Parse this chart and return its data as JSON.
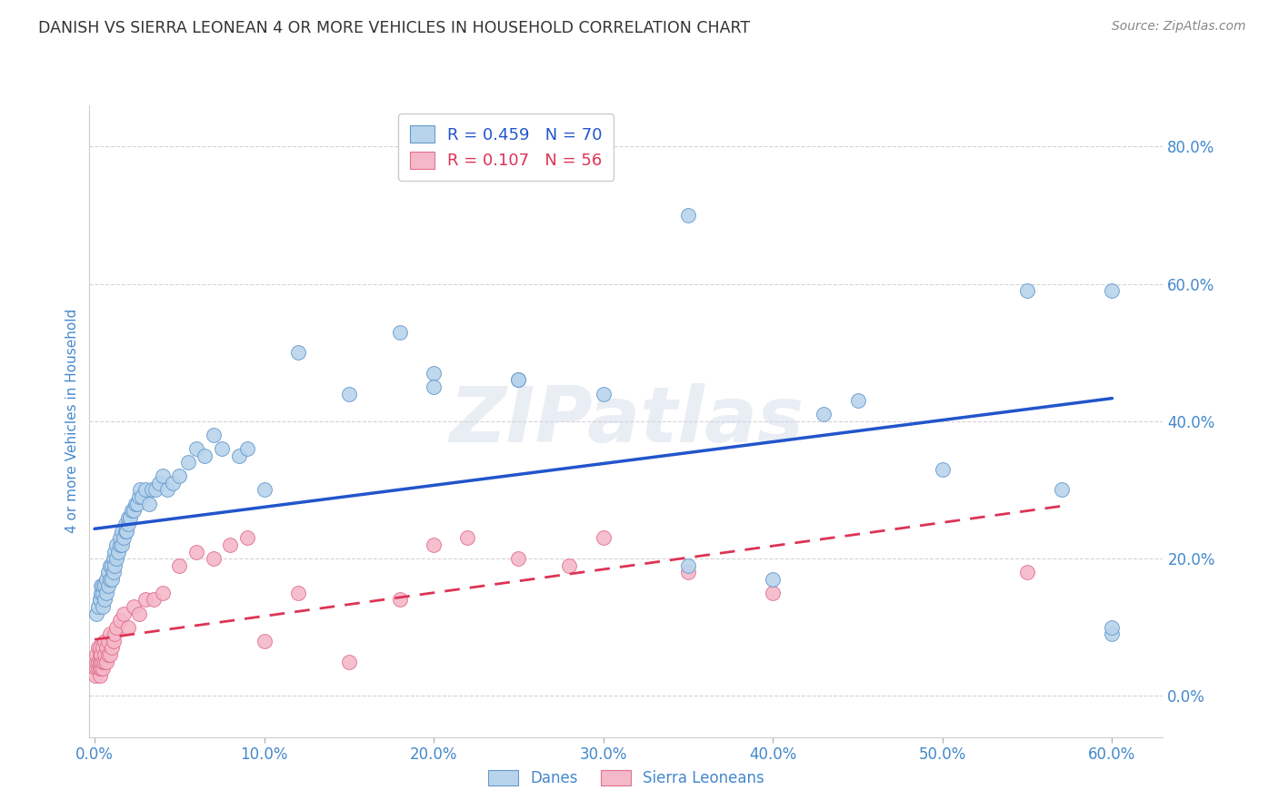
{
  "title": "DANISH VS SIERRA LEONEAN 4 OR MORE VEHICLES IN HOUSEHOLD CORRELATION CHART",
  "source": "Source: ZipAtlas.com",
  "ylabel": "4 or more Vehicles in Household",
  "watermark": "ZIPatlas",
  "legend_dane_R": "0.459",
  "legend_dane_N": "70",
  "legend_sierra_R": "0.107",
  "legend_sierra_N": "56",
  "dane_color": "#b8d4ec",
  "dane_edge_color": "#6699cc",
  "sierra_color": "#f5b8c8",
  "sierra_edge_color": "#e07090",
  "trend_dane_color": "#2255cc",
  "trend_sierra_color": "#dd3355",
  "xlim": [
    -0.003,
    0.63
  ],
  "ylim": [
    -0.06,
    0.86
  ],
  "xtick_vals": [
    0.0,
    0.1,
    0.2,
    0.3,
    0.4,
    0.5,
    0.6
  ],
  "ytick_vals": [
    0.0,
    0.2,
    0.4,
    0.6,
    0.8
  ],
  "background_color": "#ffffff",
  "grid_color": "#d0d0d0",
  "title_color": "#333333",
  "axis_label_color": "#4488cc",
  "tick_color": "#4488cc",
  "danes_x": [
    0.001,
    0.002,
    0.003,
    0.003,
    0.004,
    0.004,
    0.005,
    0.005,
    0.005,
    0.006,
    0.006,
    0.007,
    0.007,
    0.008,
    0.008,
    0.009,
    0.009,
    0.01,
    0.01,
    0.011,
    0.011,
    0.012,
    0.012,
    0.013,
    0.013,
    0.014,
    0.015,
    0.015,
    0.016,
    0.016,
    0.017,
    0.018,
    0.018,
    0.019,
    0.02,
    0.02,
    0.021,
    0.022,
    0.023,
    0.024,
    0.025,
    0.026,
    0.027,
    0.028,
    0.03,
    0.032,
    0.034,
    0.036,
    0.038,
    0.04,
    0.043,
    0.046,
    0.05,
    0.055,
    0.06,
    0.065,
    0.07,
    0.075,
    0.085,
    0.09,
    0.1,
    0.12,
    0.15,
    0.18,
    0.2,
    0.25,
    0.3,
    0.35,
    0.4,
    0.6
  ],
  "danes_y": [
    0.12,
    0.13,
    0.14,
    0.14,
    0.15,
    0.16,
    0.13,
    0.15,
    0.16,
    0.14,
    0.16,
    0.15,
    0.17,
    0.16,
    0.18,
    0.17,
    0.19,
    0.17,
    0.19,
    0.18,
    0.2,
    0.19,
    0.21,
    0.2,
    0.22,
    0.21,
    0.22,
    0.23,
    0.22,
    0.24,
    0.23,
    0.24,
    0.25,
    0.24,
    0.25,
    0.26,
    0.26,
    0.27,
    0.27,
    0.28,
    0.28,
    0.29,
    0.3,
    0.29,
    0.3,
    0.28,
    0.3,
    0.3,
    0.31,
    0.32,
    0.3,
    0.31,
    0.32,
    0.34,
    0.36,
    0.35,
    0.38,
    0.36,
    0.35,
    0.36,
    0.3,
    0.5,
    0.44,
    0.53,
    0.47,
    0.46,
    0.44,
    0.19,
    0.17,
    0.59
  ],
  "danes_x2": [
    0.2,
    0.25,
    0.35,
    0.43,
    0.45,
    0.5,
    0.55,
    0.57,
    0.6,
    0.6
  ],
  "danes_y2": [
    0.45,
    0.46,
    0.7,
    0.41,
    0.43,
    0.33,
    0.59,
    0.3,
    0.09,
    0.1
  ],
  "sierra_x": [
    0.0005,
    0.001,
    0.001,
    0.001,
    0.002,
    0.002,
    0.002,
    0.003,
    0.003,
    0.003,
    0.003,
    0.003,
    0.004,
    0.004,
    0.004,
    0.005,
    0.005,
    0.005,
    0.006,
    0.006,
    0.006,
    0.007,
    0.007,
    0.008,
    0.008,
    0.009,
    0.009,
    0.01,
    0.011,
    0.012,
    0.013,
    0.015,
    0.017,
    0.02,
    0.023,
    0.026,
    0.03,
    0.035,
    0.04,
    0.05,
    0.06,
    0.07,
    0.08,
    0.09,
    0.1,
    0.12,
    0.15,
    0.18,
    0.2,
    0.22,
    0.25,
    0.28,
    0.3,
    0.35,
    0.4,
    0.55
  ],
  "sierra_y": [
    0.03,
    0.04,
    0.05,
    0.06,
    0.04,
    0.05,
    0.07,
    0.03,
    0.04,
    0.05,
    0.06,
    0.07,
    0.04,
    0.05,
    0.06,
    0.04,
    0.05,
    0.07,
    0.05,
    0.06,
    0.08,
    0.05,
    0.07,
    0.06,
    0.08,
    0.06,
    0.09,
    0.07,
    0.08,
    0.09,
    0.1,
    0.11,
    0.12,
    0.1,
    0.13,
    0.12,
    0.14,
    0.14,
    0.15,
    0.19,
    0.21,
    0.2,
    0.22,
    0.23,
    0.08,
    0.15,
    0.05,
    0.14,
    0.22,
    0.23,
    0.2,
    0.19,
    0.23,
    0.18,
    0.15,
    0.18
  ]
}
